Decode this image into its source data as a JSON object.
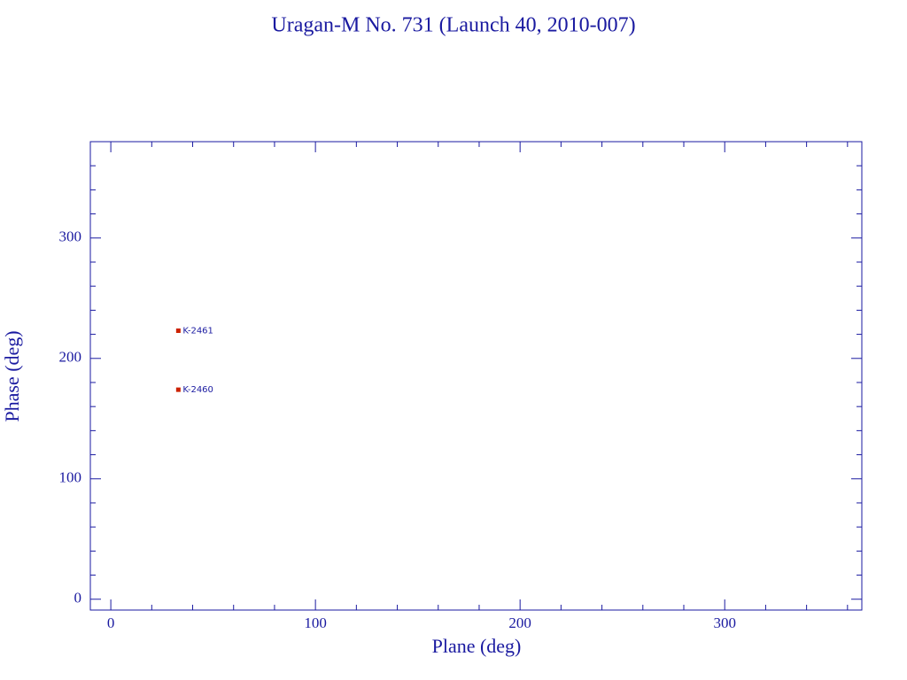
{
  "chart_data": {
    "type": "scatter",
    "title": "Uragan-M No. 731 (Launch 40, 2010-007)",
    "x_label": "Plane (deg)",
    "y_label": "Phase (deg)",
    "points": [
      {
        "x": 33,
        "y": 223,
        "label": "K-2461"
      },
      {
        "x": 33,
        "y": 174,
        "label": "K-2460"
      }
    ],
    "color": "#cc2200",
    "xlim": [
      -10,
      367
    ],
    "ylim": [
      -9,
      380
    ],
    "xticks": [
      0,
      100,
      200,
      300
    ],
    "yticks": [
      0,
      100,
      200,
      300
    ],
    "minor_xticks": [
      20,
      40,
      60,
      80,
      120,
      140,
      160,
      180,
      220,
      240,
      260,
      280,
      320,
      340,
      360
    ],
    "minor_yticks": [
      20,
      40,
      60,
      80,
      120,
      140,
      160,
      180,
      220,
      240,
      260,
      280,
      320,
      340,
      360
    ]
  }
}
